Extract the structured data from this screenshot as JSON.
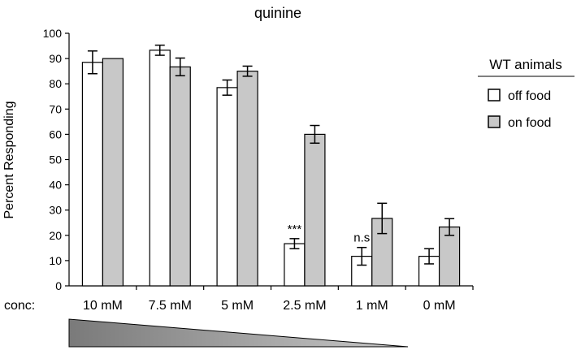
{
  "chart_data": {
    "type": "bar",
    "title": "quinine",
    "ylabel": "Percent Responding",
    "xlabel_prefix": "conc:",
    "categories": [
      "10 mM",
      "7.5 mM",
      "5 mM",
      "2.5 mM",
      "1 mM",
      "0 mM"
    ],
    "ylim": [
      0,
      100
    ],
    "yticks": [
      0,
      10,
      20,
      30,
      40,
      50,
      60,
      70,
      80,
      90,
      100
    ],
    "grid": false,
    "legend": {
      "title": "WT animals",
      "position": "right"
    },
    "series": [
      {
        "name": "off food",
        "color": "#ffffff",
        "values": [
          88.5,
          93.3,
          78.5,
          16.7,
          11.7,
          11.7
        ],
        "errors": [
          4.5,
          2.0,
          3.0,
          2.0,
          3.5,
          3.0
        ]
      },
      {
        "name": "on food",
        "color": "#c8c8c8",
        "values": [
          90,
          86.7,
          85,
          60,
          26.7,
          23.3
        ],
        "errors": [
          0,
          3.5,
          2.0,
          3.5,
          6.0,
          3.3
        ]
      }
    ],
    "annotations": [
      {
        "category": "2.5 mM",
        "series": "off food",
        "text": "***"
      },
      {
        "category": "1 mM",
        "series": "off food",
        "text": "n.s"
      }
    ],
    "gradient_indicator": {
      "direction": "decreasing",
      "fill": "#8a8a8a"
    }
  }
}
